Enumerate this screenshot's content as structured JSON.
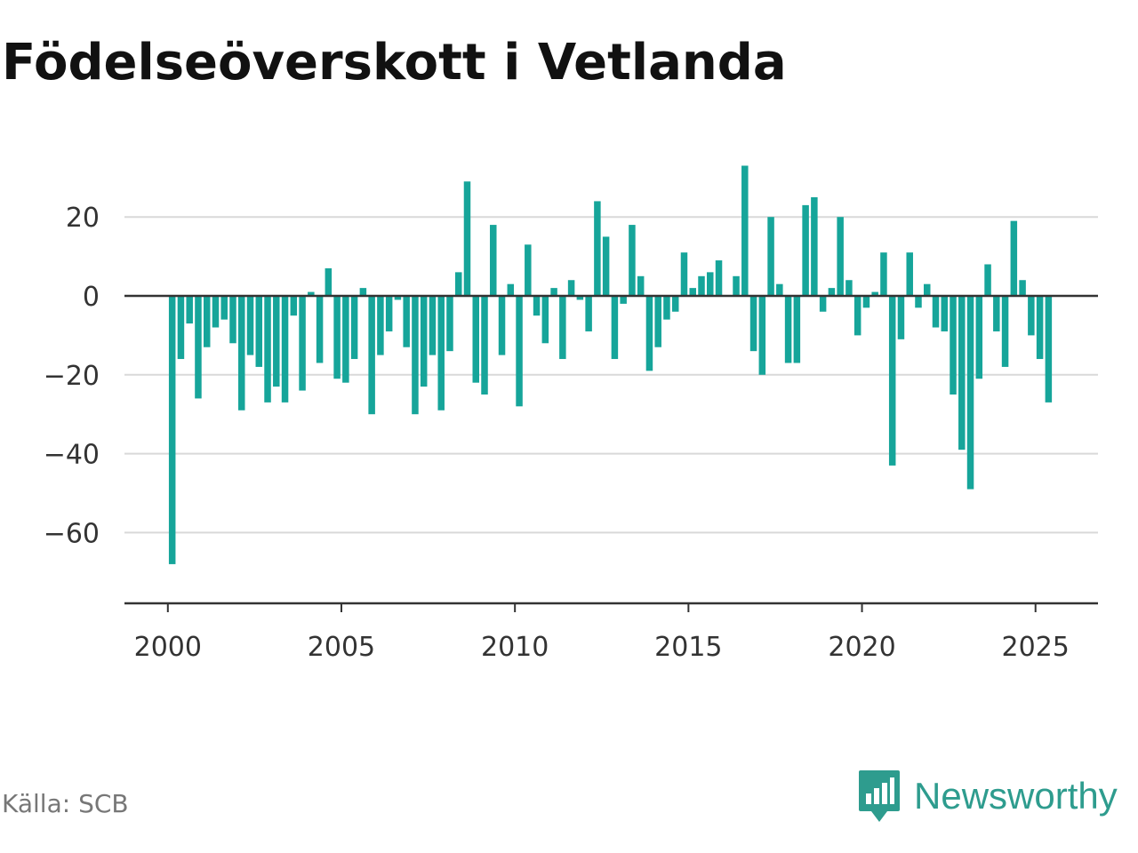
{
  "title": "Födelseöverskott i Vetlanda",
  "source": "Källa: SCB",
  "brand": {
    "name": "Newsworthy",
    "icon": "newsworthy-logo-icon",
    "color": "#2e9c8e"
  },
  "chart_data": {
    "type": "bar",
    "title": "Födelseöverskott i Vetlanda",
    "xlabel": "",
    "ylabel": "",
    "bar_color": "#16a59a",
    "ylim": [
      -78,
      34
    ],
    "yticks": [
      20,
      0,
      -20,
      -40,
      -60
    ],
    "ytick_labels": [
      "20",
      "0",
      "−20",
      "−40",
      "−60"
    ],
    "xticks": [
      2000,
      2005,
      2010,
      2015,
      2020,
      2025
    ],
    "xtick_labels": [
      "2000",
      "2005",
      "2010",
      "2015",
      "2020",
      "2025"
    ],
    "xlim": [
      1998.75,
      2026.8
    ],
    "grid": true,
    "x": [
      2000.125,
      2000.375,
      2000.625,
      2000.875,
      2001.125,
      2001.375,
      2001.625,
      2001.875,
      2002.125,
      2002.375,
      2002.625,
      2002.875,
      2003.125,
      2003.375,
      2003.625,
      2003.875,
      2004.125,
      2004.375,
      2004.625,
      2004.875,
      2005.125,
      2005.375,
      2005.625,
      2005.875,
      2006.125,
      2006.375,
      2006.625,
      2006.875,
      2007.125,
      2007.375,
      2007.625,
      2007.875,
      2008.125,
      2008.375,
      2008.625,
      2008.875,
      2009.125,
      2009.375,
      2009.625,
      2009.875,
      2010.125,
      2010.375,
      2010.625,
      2010.875,
      2011.125,
      2011.375,
      2011.625,
      2011.875,
      2012.125,
      2012.375,
      2012.625,
      2012.875,
      2013.125,
      2013.375,
      2013.625,
      2013.875,
      2014.125,
      2014.375,
      2014.625,
      2014.875,
      2015.125,
      2015.375,
      2015.625,
      2015.875,
      2016.125,
      2016.375,
      2016.625,
      2016.875,
      2017.125,
      2017.375,
      2017.625,
      2017.875,
      2018.125,
      2018.375,
      2018.625,
      2018.875,
      2019.125,
      2019.375,
      2019.625,
      2019.875,
      2020.125,
      2020.375,
      2020.625,
      2020.875,
      2021.125,
      2021.375,
      2021.625,
      2021.875,
      2022.125,
      2022.375,
      2022.625,
      2022.875,
      2023.125,
      2023.375,
      2023.625,
      2023.875,
      2024.125,
      2024.375,
      2024.625,
      2024.875,
      2025.125,
      2025.375
    ],
    "values": [
      -68,
      -16,
      -7,
      -26,
      -13,
      -8,
      -6,
      -12,
      -29,
      -15,
      -18,
      -27,
      -23,
      -27,
      -5,
      -24,
      1,
      -17,
      7,
      -21,
      -22,
      -16,
      2,
      -30,
      -15,
      -9,
      -1,
      -13,
      -30,
      -23,
      -15,
      -29,
      -14,
      6,
      29,
      -22,
      -25,
      18,
      -15,
      3,
      -28,
      13,
      -5,
      -12,
      2,
      -16,
      4,
      -1,
      -9,
      24,
      15,
      -16,
      -2,
      18,
      5,
      -19,
      -13,
      -6,
      -4,
      11,
      2,
      5,
      6,
      9,
      0,
      5,
      33,
      -14,
      -20,
      20,
      3,
      -17,
      -17,
      23,
      25,
      -4,
      2,
      20,
      4,
      -10,
      -3,
      1,
      11,
      -43,
      -11,
      11,
      -3,
      3,
      -8,
      -9,
      -25,
      -39,
      -49,
      -21,
      8,
      -9,
      -18,
      19,
      4,
      -10,
      -16,
      -27
    ]
  }
}
